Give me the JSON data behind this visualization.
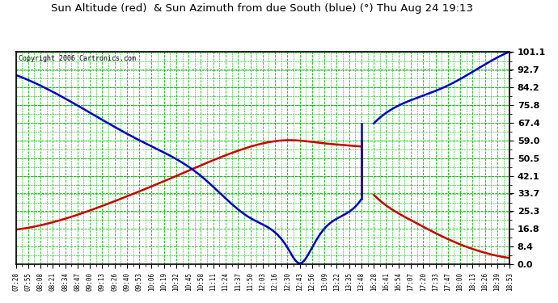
{
  "title": "Sun Altitude (red)  & Sun Azimuth from due South (blue) (°) Thu Aug 24 19:13",
  "copyright": "Copyright 2006 Cartronics.com",
  "ylabel_values": [
    0.0,
    8.4,
    16.8,
    25.3,
    33.7,
    42.1,
    50.5,
    59.0,
    67.4,
    75.8,
    84.2,
    92.7,
    101.1
  ],
  "background_color": "#ffffff",
  "grid_color": "#00bb00",
  "line_color_red": "#cc0000",
  "line_color_blue": "#0000cc",
  "border_color": "#000000",
  "x_tick_labels": [
    "07:28",
    "07:55",
    "08:08",
    "08:21",
    "08:34",
    "08:47",
    "09:00",
    "09:13",
    "09:26",
    "09:40",
    "09:53",
    "10:06",
    "10:19",
    "10:32",
    "10:45",
    "10:58",
    "11:11",
    "11:24",
    "11:37",
    "11:50",
    "12:03",
    "12:16",
    "12:30",
    "12:43",
    "12:56",
    "13:09",
    "13:22",
    "13:35",
    "13:48",
    "16:28",
    "16:41",
    "16:54",
    "17:07",
    "17:20",
    "17:33",
    "17:47",
    "18:00",
    "18:13",
    "18:26",
    "18:39",
    "18:53"
  ],
  "figsize": [
    6.9,
    3.75
  ],
  "dpi": 100
}
